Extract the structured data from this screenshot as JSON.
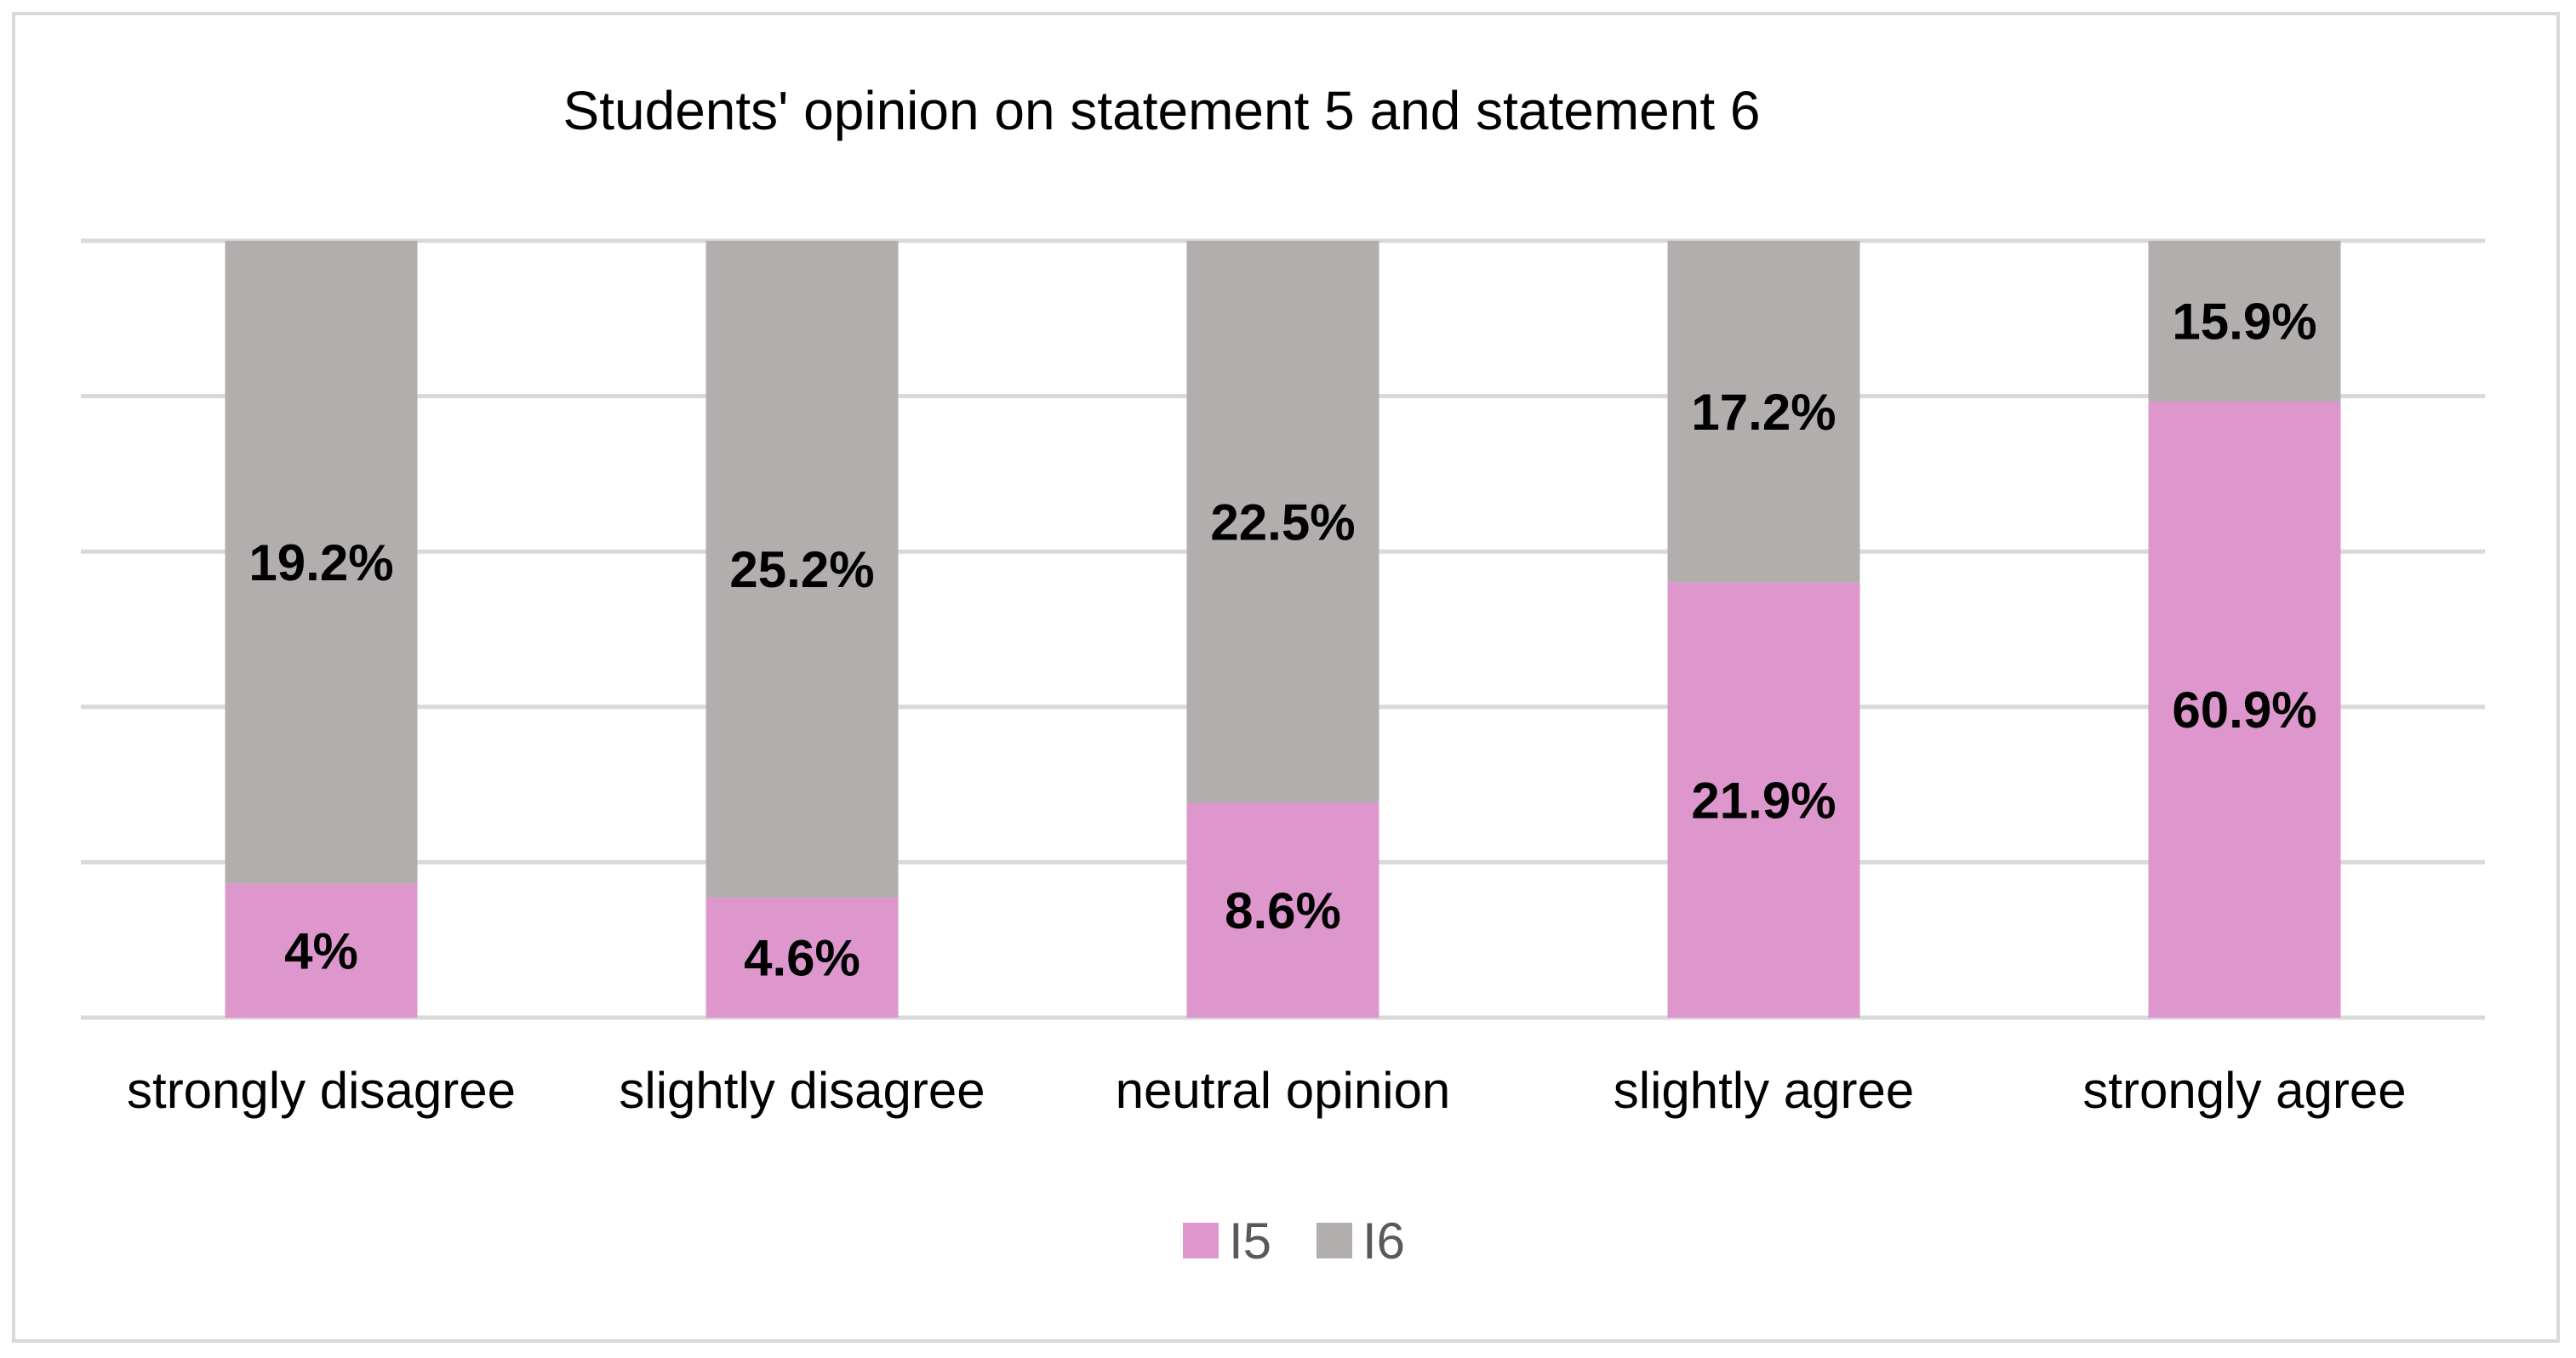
{
  "chart_data": {
    "type": "bar",
    "stacked": true,
    "percent_stacked": true,
    "title": "Students' opinion on statement 5 and statement 6",
    "categories": [
      "strongly disagree",
      "slightly disagree",
      "neutral opinion",
      "slightly agree",
      "strongly agree"
    ],
    "series": [
      {
        "name": "I5",
        "color": "#dd97cc",
        "values": [
          4,
          4.6,
          8.6,
          21.9,
          60.9
        ],
        "labels": [
          "4%",
          "4.6%",
          "8.6%",
          "21.9%",
          "60.9%"
        ]
      },
      {
        "name": "I6",
        "color": "#b2aeae",
        "values": [
          19.2,
          25.2,
          22.5,
          17.2,
          15.9
        ],
        "labels": [
          "19.2%",
          "25.2%",
          "22.5%",
          "17.2%",
          "15.9%"
        ]
      }
    ],
    "grid": true,
    "legend": "bottom",
    "gridline_color": "#d9d9d9",
    "border_color": "#d9d9d9"
  }
}
